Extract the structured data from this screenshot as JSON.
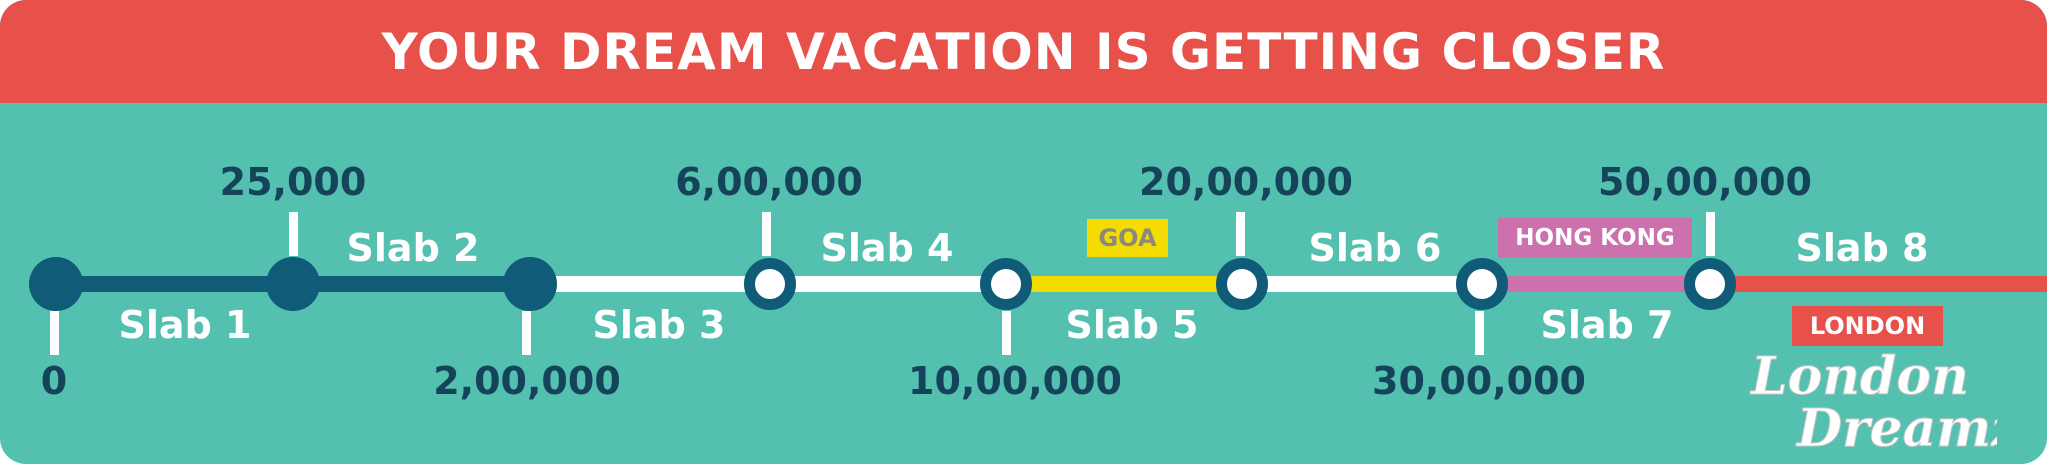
{
  "banner": {
    "title": "YOUR DREAM VACATION IS GETTING CLOSER"
  },
  "colors": {
    "banner": "#e8504a",
    "background": "#53c0b0",
    "achieved": "#0f5b78",
    "track": "#ffffff",
    "goa": "#f5dc00",
    "hong_kong": "#cc70ae",
    "london": "#e8504a"
  },
  "milestones": [
    {
      "amount": "0",
      "status": "achieved"
    },
    {
      "amount": "25,000",
      "status": "achieved"
    },
    {
      "amount": "2,00,000",
      "status": "achieved"
    },
    {
      "amount": "6,00,000",
      "status": "open"
    },
    {
      "amount": "10,00,000",
      "status": "open"
    },
    {
      "amount": "20,00,000",
      "status": "open"
    },
    {
      "amount": "30,00,000",
      "status": "open"
    },
    {
      "amount": "50,00,000",
      "status": "open"
    }
  ],
  "slabs": [
    "Slab 1",
    "Slab 2",
    "Slab 3",
    "Slab 4",
    "Slab 5",
    "Slab 6",
    "Slab 7",
    "Slab 8"
  ],
  "destinations": {
    "goa": "GOA",
    "hong_kong": "HONG KONG",
    "london": "LONDON"
  },
  "logo": {
    "line1": "London",
    "line2": "Dreamz"
  }
}
